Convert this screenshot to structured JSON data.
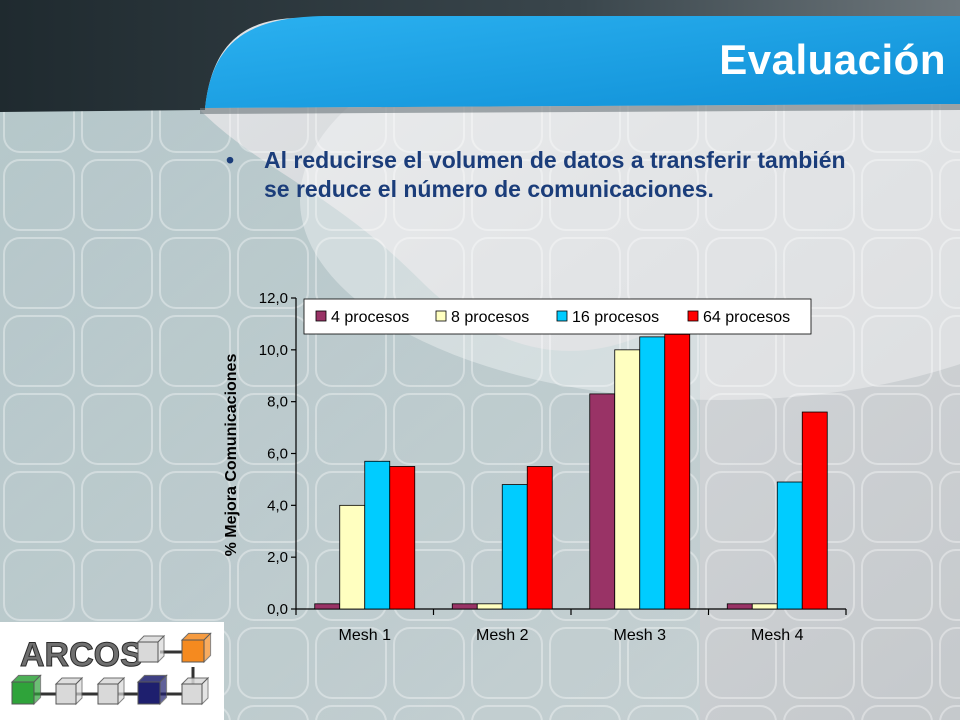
{
  "slide": {
    "title": "Evaluación",
    "bullet": "Al reducirse el volumen de datos a transferir también se reduce el número de comunicaciones.",
    "colors": {
      "accent_blue": "#1aa3e6",
      "dark_header": "#28353c",
      "text_blue": "#1b3d7a",
      "background": "#d4d7da"
    }
  },
  "logo": {
    "text": "ARCOS",
    "cube_colors": [
      "#2fa33a",
      "#1e1f6e",
      "#f58a1f",
      "#d9d9d9"
    ]
  },
  "chart_data": {
    "type": "bar",
    "categories": [
      "Mesh 1",
      "Mesh 2",
      "Mesh 3",
      "Mesh 4"
    ],
    "series": [
      {
        "name": "4 procesos",
        "color": "#993366",
        "values": [
          0.2,
          0.2,
          8.3,
          0.2
        ]
      },
      {
        "name": "8 procesos",
        "color": "#ffffc0",
        "values": [
          4.0,
          0.2,
          10.0,
          0.2
        ]
      },
      {
        "name": "16 procesos",
        "color": "#00ccff",
        "values": [
          5.7,
          4.8,
          10.5,
          4.9
        ]
      },
      {
        "name": "64 procesos",
        "color": "#ff0000",
        "values": [
          5.5,
          5.5,
          10.6,
          7.6
        ]
      }
    ],
    "ylabel": "% Mejora Comunicaciones",
    "xlabel": "",
    "ylim": [
      0,
      12
    ],
    "yticks": [
      "0,0",
      "2,0",
      "4,0",
      "6,0",
      "8,0",
      "10,0",
      "12,0"
    ],
    "legend_position": "top",
    "grid": false
  }
}
